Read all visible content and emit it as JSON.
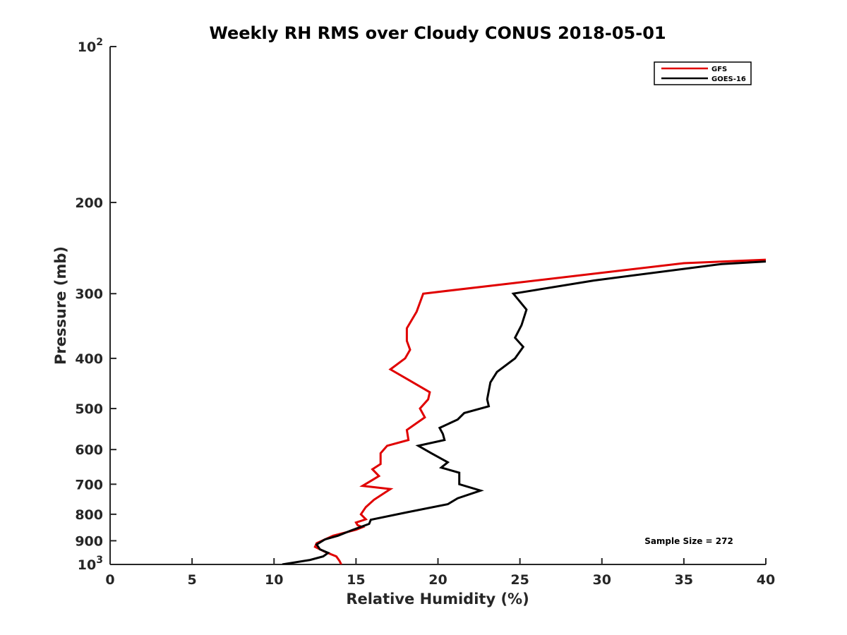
{
  "chart_data": {
    "type": "line",
    "title": "Weekly RH RMS over Cloudy CONUS 2018-05-01",
    "xlabel": "Relative Humidity (%)",
    "ylabel": "Pressure (mb)",
    "xlim": [
      0,
      40
    ],
    "ylim": [
      1000,
      100
    ],
    "yscale": "log",
    "x_ticks": [
      0,
      5,
      10,
      15,
      20,
      25,
      30,
      35,
      40
    ],
    "y_ticks": [
      {
        "value": 100,
        "label": "10",
        "sup": "2"
      },
      {
        "value": 200,
        "label": "200",
        "sup": ""
      },
      {
        "value": 300,
        "label": "300",
        "sup": ""
      },
      {
        "value": 400,
        "label": "400",
        "sup": ""
      },
      {
        "value": 500,
        "label": "500",
        "sup": ""
      },
      {
        "value": 600,
        "label": "600",
        "sup": ""
      },
      {
        "value": 700,
        "label": "700",
        "sup": ""
      },
      {
        "value": 800,
        "label": "800",
        "sup": ""
      },
      {
        "value": 900,
        "label": "900",
        "sup": ""
      },
      {
        "value": 1000,
        "label": "10",
        "sup": "3"
      }
    ],
    "grid": false,
    "legend_position": "top-right",
    "series": [
      {
        "name": "GFS",
        "color": "#e00000",
        "points": [
          [
            40.0,
            258
          ],
          [
            35.0,
            262
          ],
          [
            19.1,
            300
          ],
          [
            18.7,
            325
          ],
          [
            18.1,
            350
          ],
          [
            18.1,
            370
          ],
          [
            18.3,
            385
          ],
          [
            18.0,
            400
          ],
          [
            17.1,
            420
          ],
          [
            18.2,
            440
          ],
          [
            19.5,
            465
          ],
          [
            19.4,
            480
          ],
          [
            18.9,
            500
          ],
          [
            19.2,
            520
          ],
          [
            18.1,
            550
          ],
          [
            18.2,
            575
          ],
          [
            16.9,
            590
          ],
          [
            16.5,
            610
          ],
          [
            16.5,
            640
          ],
          [
            16.0,
            655
          ],
          [
            16.4,
            675
          ],
          [
            15.9,
            690
          ],
          [
            15.4,
            705
          ],
          [
            17.1,
            715
          ],
          [
            16.1,
            750
          ],
          [
            15.6,
            775
          ],
          [
            15.3,
            800
          ],
          [
            15.6,
            818
          ],
          [
            15.0,
            830
          ],
          [
            15.1,
            840
          ],
          [
            15.4,
            847
          ],
          [
            15.0,
            857
          ],
          [
            13.6,
            880
          ],
          [
            12.6,
            910
          ],
          [
            12.5,
            925
          ],
          [
            13.1,
            945
          ],
          [
            13.8,
            965
          ],
          [
            14.0,
            985
          ],
          [
            14.1,
            1000
          ]
        ]
      },
      {
        "name": "GOES-16",
        "color": "#000000",
        "points": [
          [
            40.0,
            260
          ],
          [
            37.3,
            263
          ],
          [
            29.5,
            283
          ],
          [
            24.6,
            300
          ],
          [
            25.4,
            322
          ],
          [
            25.1,
            345
          ],
          [
            24.7,
            365
          ],
          [
            25.2,
            380
          ],
          [
            24.7,
            400
          ],
          [
            23.6,
            425
          ],
          [
            23.2,
            445
          ],
          [
            23.0,
            480
          ],
          [
            23.1,
            495
          ],
          [
            21.6,
            510
          ],
          [
            21.2,
            525
          ],
          [
            20.1,
            545
          ],
          [
            20.3,
            560
          ],
          [
            20.4,
            575
          ],
          [
            18.8,
            590
          ],
          [
            19.6,
            610
          ],
          [
            20.6,
            635
          ],
          [
            20.2,
            650
          ],
          [
            21.3,
            665
          ],
          [
            21.3,
            700
          ],
          [
            22.6,
            720
          ],
          [
            21.2,
            745
          ],
          [
            20.6,
            765
          ],
          [
            18.1,
            793
          ],
          [
            15.9,
            820
          ],
          [
            15.8,
            835
          ],
          [
            14.7,
            860
          ],
          [
            13.9,
            880
          ],
          [
            13.1,
            895
          ],
          [
            12.6,
            915
          ],
          [
            12.8,
            935
          ],
          [
            13.3,
            950
          ],
          [
            13.0,
            965
          ],
          [
            12.2,
            980
          ],
          [
            10.5,
            1000
          ]
        ]
      }
    ],
    "annotations": [
      "Sample Size = 272"
    ]
  }
}
